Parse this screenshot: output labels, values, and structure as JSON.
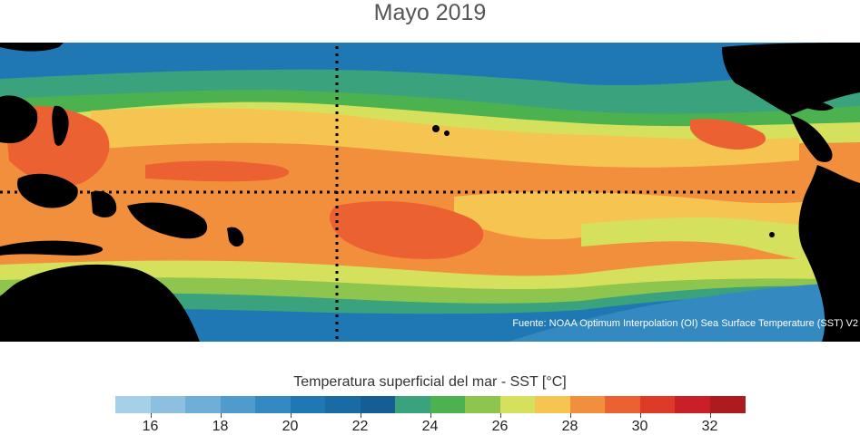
{
  "title": "Mayo 2019",
  "source_note": "Fuente: NOAA Optimum Interpolation (OI) Sea Surface Temperature (SST) V2",
  "colorbar": {
    "label": "Temperatura superficial del mar - SST  [°C]",
    "min": 15,
    "max": 33,
    "ticks": [
      "16",
      "18",
      "20",
      "22",
      "24",
      "26",
      "28",
      "30",
      "32"
    ],
    "colors": [
      "#a6cfe8",
      "#8dbfe0",
      "#6eaed7",
      "#4f9bcc",
      "#3489c0",
      "#1f78b4",
      "#1a6aa3",
      "#155e93",
      "#3aa27d",
      "#4bb24f",
      "#8ec54f",
      "#d5e05c",
      "#f5c451",
      "#f28f3c",
      "#ec6131",
      "#de3a28",
      "#c91f27",
      "#ad1b1f"
    ]
  },
  "map_colors": {
    "land": "#000000",
    "reference_lines": "#000000"
  }
}
